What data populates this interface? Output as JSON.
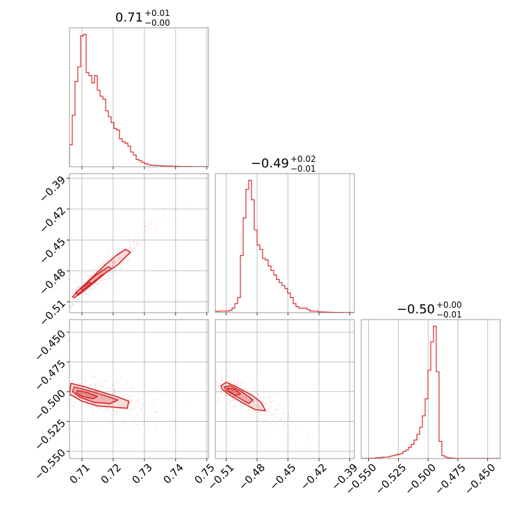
{
  "chart_data": {
    "type": "corner",
    "color": "#d62728",
    "grid": true,
    "params": [
      {
        "title": {
          "median": "0.71",
          "plus": "+0.01",
          "minus": "−0.00"
        },
        "range": [
          0.706,
          0.7505
        ],
        "ticks": [
          0.71,
          0.72,
          0.73,
          0.74,
          0.75
        ],
        "tick_labels": [
          "0.71",
          "0.72",
          "0.73",
          "0.74",
          "0.75"
        ]
      },
      {
        "title": {
          "median": "−0.49",
          "plus": "+0.02",
          "minus": "−0.01"
        },
        "range": [
          -0.5205,
          -0.3857
        ],
        "ticks": [
          -0.51,
          -0.48,
          -0.45,
          -0.42,
          -0.39
        ],
        "tick_labels": [
          "−0.51",
          "−0.48",
          "−0.45",
          "−0.42",
          "−0.39"
        ]
      },
      {
        "title": {
          "median": "−0.50",
          "plus": "+0.00",
          "minus": "−0.01"
        },
        "range": [
          -0.5562,
          -0.4394
        ],
        "ticks": [
          -0.55,
          -0.525,
          -0.5,
          -0.475,
          -0.45
        ],
        "tick_labels": [
          "−0.550",
          "−0.525",
          "−0.500",
          "−0.475",
          "−0.450"
        ]
      }
    ],
    "histograms": [
      {
        "param": 0,
        "edges": [
          0.706,
          0.7505
        ],
        "counts": [
          0.15,
          0.35,
          0.58,
          0.68,
          0.89,
          0.9,
          0.64,
          0.62,
          0.57,
          0.62,
          0.52,
          0.48,
          0.46,
          0.38,
          0.34,
          0.3,
          0.26,
          0.25,
          0.19,
          0.17,
          0.16,
          0.14,
          0.1,
          0.08,
          0.05,
          0.04,
          0.03,
          0.02,
          0.015,
          0.01,
          0.01,
          0.008,
          0.008,
          0.006,
          0.005,
          0.005,
          0.004,
          0.003,
          0.003,
          0.003,
          0.002,
          0.002,
          0.002,
          0.002,
          0.001,
          0.001,
          0.001,
          0.001,
          0.001,
          0.001
        ]
      },
      {
        "param": 1,
        "edges": [
          -0.5205,
          -0.3857
        ],
        "counts": [
          0.008,
          0.01,
          0.01,
          0.01,
          0.01,
          0.015,
          0.03,
          0.06,
          0.1,
          0.38,
          0.63,
          0.82,
          0.88,
          0.75,
          0.55,
          0.45,
          0.42,
          0.36,
          0.35,
          0.31,
          0.28,
          0.25,
          0.22,
          0.2,
          0.18,
          0.16,
          0.13,
          0.1,
          0.06,
          0.04,
          0.03,
          0.03,
          0.03,
          0.02,
          0.01,
          0.01,
          0.01,
          0.005,
          0.005,
          0.004,
          0.003,
          0.003,
          0.002,
          0.002,
          0.002,
          0.001,
          0.001,
          0.001,
          0.001,
          0.001
        ]
      },
      {
        "param": 2,
        "edges": [
          -0.5562,
          -0.4394
        ],
        "counts": [
          0.001,
          0.001,
          0.001,
          0.002,
          0.002,
          0.005,
          0.005,
          0.008,
          0.01,
          0.01,
          0.015,
          0.02,
          0.025,
          0.03,
          0.035,
          0.05,
          0.06,
          0.08,
          0.1,
          0.13,
          0.17,
          0.22,
          0.3,
          0.42,
          0.62,
          0.82,
          0.93,
          0.61,
          0.12,
          0.02,
          0.01,
          0.005,
          0.004,
          0.002,
          0.001,
          0.001,
          0.001,
          0.001,
          0.001,
          0.001,
          0.001,
          0.001,
          0.001,
          0.001,
          0.001,
          0.001,
          0.001,
          0.001,
          0.001,
          0.001
        ]
      }
    ],
    "contours_2d": [
      {
        "x_param": 0,
        "y_param": 1,
        "levels": [
          [
            [
              0.7075,
              -0.506
            ],
            [
              0.71,
              -0.501
            ],
            [
              0.714,
              -0.491
            ],
            [
              0.718,
              -0.481
            ],
            [
              0.7215,
              -0.474
            ],
            [
              0.7255,
              -0.462
            ],
            [
              0.724,
              -0.459
            ],
            [
              0.721,
              -0.465
            ],
            [
              0.7175,
              -0.474
            ],
            [
              0.713,
              -0.487
            ],
            [
              0.7095,
              -0.497
            ],
            [
              0.707,
              -0.505
            ]
          ],
          [
            [
              0.7085,
              -0.503
            ],
            [
              0.712,
              -0.495
            ],
            [
              0.716,
              -0.485
            ],
            [
              0.7195,
              -0.478
            ],
            [
              0.7185,
              -0.476
            ],
            [
              0.715,
              -0.483
            ],
            [
              0.711,
              -0.493
            ],
            [
              0.708,
              -0.501
            ]
          ],
          [
            [
              0.71,
              -0.499
            ],
            [
              0.713,
              -0.492
            ],
            [
              0.7125,
              -0.491
            ],
            [
              0.7097,
              -0.497
            ]
          ]
        ]
      },
      {
        "x_param": 0,
        "y_param": 2,
        "levels": [
          [
            [
              0.7065,
              -0.493
            ],
            [
              0.711,
              -0.496
            ],
            [
              0.716,
              -0.5
            ],
            [
              0.721,
              -0.504
            ],
            [
              0.725,
              -0.508
            ],
            [
              0.7245,
              -0.514
            ],
            [
              0.72,
              -0.513
            ],
            [
              0.715,
              -0.512
            ],
            [
              0.71,
              -0.508
            ],
            [
              0.706,
              -0.502
            ]
          ],
          [
            [
              0.7075,
              -0.496
            ],
            [
              0.712,
              -0.499
            ],
            [
              0.717,
              -0.503
            ],
            [
              0.7215,
              -0.507
            ],
            [
              0.719,
              -0.51
            ],
            [
              0.714,
              -0.509
            ],
            [
              0.7095,
              -0.505
            ],
            [
              0.707,
              -0.5
            ]
          ],
          [
            [
              0.7085,
              -0.499
            ],
            [
              0.712,
              -0.501
            ],
            [
              0.715,
              -0.504
            ],
            [
              0.7135,
              -0.506
            ],
            [
              0.71,
              -0.504
            ],
            [
              0.7082,
              -0.501
            ]
          ]
        ]
      },
      {
        "x_param": 1,
        "y_param": 2,
        "levels": [
          [
            [
              -0.515,
              -0.495
            ],
            [
              -0.51,
              -0.492
            ],
            [
              -0.5,
              -0.496
            ],
            [
              -0.485,
              -0.503
            ],
            [
              -0.476,
              -0.509
            ],
            [
              -0.472,
              -0.516
            ],
            [
              -0.482,
              -0.515
            ],
            [
              -0.495,
              -0.509
            ],
            [
              -0.508,
              -0.502
            ],
            [
              -0.514,
              -0.498
            ]
          ],
          [
            [
              -0.512,
              -0.496
            ],
            [
              -0.506,
              -0.495
            ],
            [
              -0.495,
              -0.5
            ],
            [
              -0.484,
              -0.507
            ],
            [
              -0.488,
              -0.51
            ],
            [
              -0.5,
              -0.504
            ],
            [
              -0.51,
              -0.499
            ]
          ],
          [
            [
              -0.509,
              -0.497
            ],
            [
              -0.502,
              -0.498
            ],
            [
              -0.496,
              -0.502
            ],
            [
              -0.501,
              -0.503
            ],
            [
              -0.507,
              -0.5
            ]
          ]
        ]
      }
    ]
  }
}
